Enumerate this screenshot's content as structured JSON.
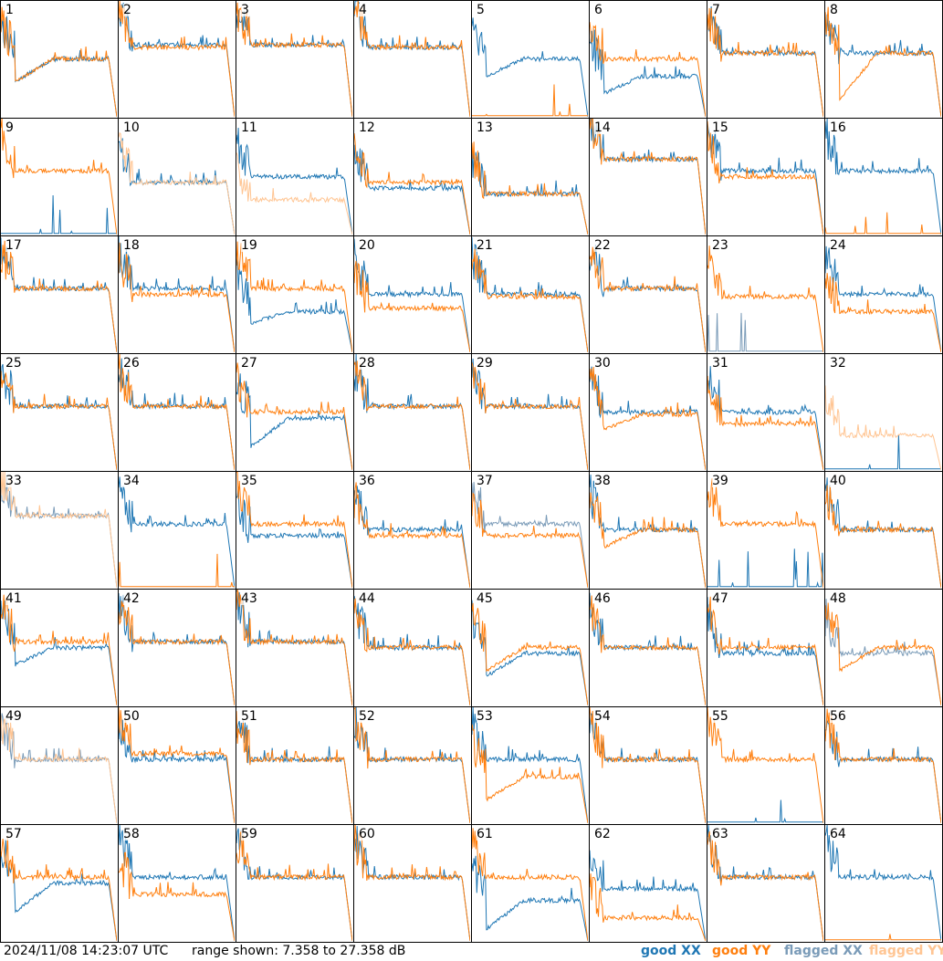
{
  "footer": {
    "timestamp": "2024/11/08 14:23:07 UTC",
    "range": "range shown: 7.358 to 27.358 dB"
  },
  "legend": [
    {
      "label": "good XX",
      "color": "#1f77b4"
    },
    {
      "label": "good YY",
      "color": "#ff7f0e"
    },
    {
      "label": "flagged XX",
      "color": "#7a9bb8"
    },
    {
      "label": "flagged YY",
      "color": "#ffc593"
    }
  ],
  "chart_data": {
    "type": "line",
    "yrange_db": [
      7.358,
      27.358
    ],
    "panels": [
      {
        "id": "1",
        "xx_state": "good",
        "yy_state": "good",
        "xx_level": 0.5,
        "yy_level": 0.5,
        "xx_dip": 0.3,
        "yy_dip": 0.3
      },
      {
        "id": "2",
        "xx_state": "good",
        "yy_state": "good",
        "xx_level": 0.62,
        "yy_level": 0.6
      },
      {
        "id": "3",
        "xx_state": "good",
        "yy_state": "good",
        "xx_level": 0.62,
        "yy_level": 0.62
      },
      {
        "id": "4",
        "xx_state": "good",
        "yy_state": "good",
        "xx_level": 0.6,
        "yy_level": 0.6
      },
      {
        "id": "5",
        "xx_state": "good",
        "yy_state": "good",
        "xx_level": 0.5,
        "yy_level": 0.0,
        "xx_dip": 0.35,
        "yy_flat": true
      },
      {
        "id": "6",
        "xx_state": "good",
        "yy_state": "good",
        "xx_level": 0.35,
        "yy_level": 0.5,
        "xx_dip": 0.2
      },
      {
        "id": "7",
        "xx_state": "good",
        "yy_state": "good",
        "xx_level": 0.55,
        "yy_level": 0.55
      },
      {
        "id": "8",
        "xx_state": "good",
        "yy_state": "good",
        "xx_level": 0.55,
        "yy_level": 0.55,
        "yy_dip": 0.15
      },
      {
        "id": "9",
        "xx_state": "good",
        "yy_state": "good",
        "xx_level": 0.0,
        "yy_level": 0.55,
        "xx_flat": true
      },
      {
        "id": "10",
        "xx_state": "good",
        "yy_state": "flagged",
        "xx_level": 0.45,
        "yy_level": 0.45
      },
      {
        "id": "11",
        "xx_state": "good",
        "yy_state": "flagged",
        "xx_level": 0.5,
        "yy_level": 0.3
      },
      {
        "id": "12",
        "xx_state": "good",
        "yy_state": "good",
        "xx_level": 0.4,
        "yy_level": 0.45
      },
      {
        "id": "13",
        "xx_state": "good",
        "yy_state": "good",
        "xx_level": 0.35,
        "yy_level": 0.35
      },
      {
        "id": "14",
        "xx_state": "good",
        "yy_state": "good",
        "xx_level": 0.65,
        "yy_level": 0.65
      },
      {
        "id": "15",
        "xx_state": "good",
        "yy_state": "good",
        "xx_level": 0.55,
        "yy_level": 0.5
      },
      {
        "id": "16",
        "xx_state": "good",
        "yy_state": "good",
        "xx_level": 0.55,
        "yy_level": 0.0,
        "yy_flat": true
      },
      {
        "id": "17",
        "xx_state": "good",
        "yy_state": "good",
        "xx_level": 0.55,
        "yy_level": 0.55
      },
      {
        "id": "18",
        "xx_state": "good",
        "yy_state": "good",
        "xx_level": 0.55,
        "yy_level": 0.5
      },
      {
        "id": "19",
        "xx_state": "good",
        "yy_state": "good",
        "xx_level": 0.35,
        "yy_level": 0.55,
        "xx_dip": 0.25
      },
      {
        "id": "20",
        "xx_state": "good",
        "yy_state": "good",
        "xx_level": 0.5,
        "yy_level": 0.38
      },
      {
        "id": "21",
        "xx_state": "good",
        "yy_state": "good",
        "xx_level": 0.5,
        "yy_level": 0.48
      },
      {
        "id": "22",
        "xx_state": "good",
        "yy_state": "good",
        "xx_level": 0.55,
        "yy_level": 0.55
      },
      {
        "id": "23",
        "xx_state": "flagged",
        "yy_state": "good",
        "xx_level": 0.0,
        "yy_level": 0.48,
        "xx_flat": true
      },
      {
        "id": "24",
        "xx_state": "good",
        "yy_state": "good",
        "xx_level": 0.5,
        "yy_level": 0.35
      },
      {
        "id": "25",
        "xx_state": "good",
        "yy_state": "good",
        "xx_level": 0.55,
        "yy_level": 0.55
      },
      {
        "id": "26",
        "xx_state": "good",
        "yy_state": "good",
        "xx_level": 0.55,
        "yy_level": 0.55
      },
      {
        "id": "27",
        "xx_state": "good",
        "yy_state": "good",
        "xx_level": 0.45,
        "yy_level": 0.5,
        "xx_dip": 0.2
      },
      {
        "id": "28",
        "xx_state": "good",
        "yy_state": "good",
        "xx_level": 0.55,
        "yy_level": 0.55
      },
      {
        "id": "29",
        "xx_state": "good",
        "yy_state": "good",
        "xx_level": 0.55,
        "yy_level": 0.55
      },
      {
        "id": "30",
        "xx_state": "good",
        "yy_state": "good",
        "xx_level": 0.5,
        "yy_level": 0.48,
        "yy_dip": 0.35
      },
      {
        "id": "31",
        "xx_state": "good",
        "yy_state": "good",
        "xx_level": 0.5,
        "yy_level": 0.4
      },
      {
        "id": "32",
        "xx_state": "good",
        "yy_state": "flagged",
        "xx_level": 0.0,
        "yy_level": 0.3,
        "xx_flat": true
      },
      {
        "id": "33",
        "xx_state": "flagged",
        "yy_state": "flagged",
        "xx_level": 0.62,
        "yy_level": 0.62
      },
      {
        "id": "34",
        "xx_state": "good",
        "yy_state": "good",
        "xx_level": 0.55,
        "yy_level": 0.0,
        "yy_flat": true
      },
      {
        "id": "35",
        "xx_state": "good",
        "yy_state": "good",
        "xx_level": 0.45,
        "yy_level": 0.55
      },
      {
        "id": "36",
        "xx_state": "good",
        "yy_state": "good",
        "xx_level": 0.5,
        "yy_level": 0.45
      },
      {
        "id": "37",
        "xx_state": "flagged",
        "yy_state": "good",
        "xx_level": 0.55,
        "yy_level": 0.45
      },
      {
        "id": "38",
        "xx_state": "good",
        "yy_state": "good",
        "xx_level": 0.5,
        "yy_level": 0.5,
        "yy_dip": 0.35
      },
      {
        "id": "39",
        "xx_state": "good",
        "yy_state": "good",
        "xx_level": 0.0,
        "yy_level": 0.55,
        "xx_flat": true
      },
      {
        "id": "40",
        "xx_state": "good",
        "yy_state": "good",
        "xx_level": 0.5,
        "yy_level": 0.5
      },
      {
        "id": "41",
        "xx_state": "good",
        "yy_state": "good",
        "xx_level": 0.5,
        "yy_level": 0.55,
        "xx_dip": 0.35
      },
      {
        "id": "42",
        "xx_state": "good",
        "yy_state": "good",
        "xx_level": 0.55,
        "yy_level": 0.55
      },
      {
        "id": "43",
        "xx_state": "good",
        "yy_state": "good",
        "xx_level": 0.55,
        "yy_level": 0.55
      },
      {
        "id": "44",
        "xx_state": "good",
        "yy_state": "good",
        "xx_level": 0.5,
        "yy_level": 0.5
      },
      {
        "id": "45",
        "xx_state": "good",
        "yy_state": "good",
        "xx_level": 0.45,
        "yy_level": 0.5,
        "xx_dip": 0.25,
        "yy_dip": 0.3
      },
      {
        "id": "46",
        "xx_state": "good",
        "yy_state": "good",
        "xx_level": 0.5,
        "yy_level": 0.5
      },
      {
        "id": "47",
        "xx_state": "good",
        "yy_state": "good",
        "xx_level": 0.45,
        "yy_level": 0.5
      },
      {
        "id": "48",
        "xx_state": "flagged",
        "yy_state": "good",
        "xx_level": 0.45,
        "yy_level": 0.5,
        "yy_dip": 0.3
      },
      {
        "id": "49",
        "xx_state": "flagged",
        "yy_state": "flagged",
        "xx_level": 0.55,
        "yy_level": 0.55
      },
      {
        "id": "50",
        "xx_state": "good",
        "yy_state": "good",
        "xx_level": 0.55,
        "yy_level": 0.6
      },
      {
        "id": "51",
        "xx_state": "good",
        "yy_state": "good",
        "xx_level": 0.55,
        "yy_level": 0.55
      },
      {
        "id": "52",
        "xx_state": "good",
        "yy_state": "good",
        "xx_level": 0.55,
        "yy_level": 0.55
      },
      {
        "id": "53",
        "xx_state": "good",
        "yy_state": "good",
        "xx_level": 0.55,
        "yy_level": 0.4,
        "yy_dip": 0.2
      },
      {
        "id": "54",
        "xx_state": "good",
        "yy_state": "good",
        "xx_level": 0.55,
        "yy_level": 0.55
      },
      {
        "id": "55",
        "xx_state": "good",
        "yy_state": "good",
        "xx_level": 0.0,
        "yy_level": 0.55,
        "xx_flat": true
      },
      {
        "id": "56",
        "xx_state": "good",
        "yy_state": "good",
        "xx_level": 0.55,
        "yy_level": 0.55
      },
      {
        "id": "57",
        "xx_state": "good",
        "yy_state": "good",
        "xx_level": 0.5,
        "yy_level": 0.55,
        "xx_dip": 0.25
      },
      {
        "id": "58",
        "xx_state": "good",
        "yy_state": "good",
        "xx_level": 0.55,
        "yy_level": 0.4
      },
      {
        "id": "59",
        "xx_state": "good",
        "yy_state": "good",
        "xx_level": 0.55,
        "yy_level": 0.55
      },
      {
        "id": "60",
        "xx_state": "good",
        "yy_state": "good",
        "xx_level": 0.55,
        "yy_level": 0.55
      },
      {
        "id": "61",
        "xx_state": "good",
        "yy_state": "good",
        "xx_level": 0.35,
        "yy_level": 0.55,
        "xx_dip": 0.1
      },
      {
        "id": "62",
        "xx_state": "good",
        "yy_state": "good",
        "xx_level": 0.45,
        "yy_level": 0.2
      },
      {
        "id": "63",
        "xx_state": "good",
        "yy_state": "good",
        "xx_level": 0.55,
        "yy_level": 0.55
      },
      {
        "id": "64",
        "xx_state": "good",
        "yy_state": "good",
        "xx_level": 0.55,
        "yy_level": 0.0,
        "yy_flat": true
      }
    ]
  }
}
